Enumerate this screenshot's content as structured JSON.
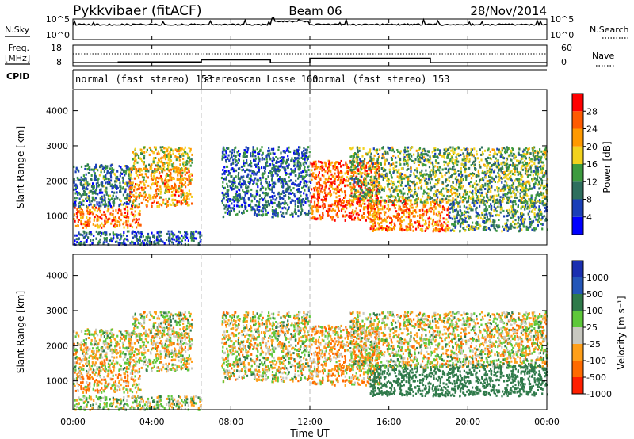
{
  "header": {
    "station": "Pykkvibaer (fitACF)",
    "beam": "Beam 06",
    "date": "28/Nov/2014"
  },
  "noise_panel": {
    "left_label": "N.Sky",
    "right_label": "N.Search",
    "left_ticks": [
      "10^5",
      "10^0"
    ],
    "right_ticks": [
      "10^5",
      "10^0"
    ]
  },
  "freq_panel": {
    "left_label_1": "Freq.",
    "left_label_2": "[MHz]",
    "left_ticks": [
      "18",
      "8"
    ],
    "right_label": "Nave",
    "right_ticks": [
      "60",
      "0"
    ]
  },
  "cpid": {
    "label": "CPID",
    "segments": [
      {
        "name": "normal (fast stereo) 153",
        "start_h": 0,
        "end_h": 6.5
      },
      {
        "name": "stereoscan Losse 160",
        "start_h": 6.5,
        "end_h": 12
      },
      {
        "name": "normal (fast stereo) 153",
        "start_h": 12,
        "end_h": 24
      }
    ]
  },
  "axes": {
    "xlabel": "Time UT",
    "xticks": [
      "00:00",
      "04:00",
      "08:00",
      "12:00",
      "16:00",
      "20:00",
      "00:00"
    ],
    "ylabel": "Slant Range [km]",
    "yticks": [
      "1000",
      "2000",
      "3000",
      "4000"
    ]
  },
  "colorbars": {
    "power": {
      "label": "Power [dB]",
      "ticks": [
        "28",
        "24",
        "20",
        "16",
        "12",
        "8",
        "4"
      ],
      "colors": [
        "#0000ff",
        "#1a3fb8",
        "#2e6f5e",
        "#3d9b3f",
        "#f2d21e",
        "#ff9900",
        "#ff5a00",
        "#ff0000"
      ]
    },
    "velocity": {
      "label": "Velocity [m s⁻¹]",
      "ticks": [
        "1000",
        "500",
        "100",
        "25",
        "-25",
        "-100",
        "-500",
        "-1000"
      ],
      "colors": [
        "#1a2fb0",
        "#2456b8",
        "#2f7a4a",
        "#5ec83a",
        "#c8c8c0",
        "#ff9f1a",
        "#ff6a00",
        "#ff1f00"
      ]
    }
  },
  "chart_data": {
    "type": "heatmap",
    "x_range_hours": [
      0,
      24
    ],
    "y_range_km": [
      180,
      4600
    ],
    "power_range_db": [
      0,
      30
    ],
    "velocity_range_ms": [
      -1000,
      1000
    ],
    "frequency_mhz": [
      {
        "start_h": 0,
        "end_h": 2.3,
        "value": 10
      },
      {
        "start_h": 2.3,
        "end_h": 6.5,
        "value": 10.5
      },
      {
        "start_h": 6.5,
        "end_h": 10,
        "value": 12
      },
      {
        "start_h": 10,
        "end_h": 12,
        "value": 10
      },
      {
        "start_h": 12,
        "end_h": 18.1,
        "value": 13
      },
      {
        "start_h": 18.1,
        "end_h": 24,
        "value": 10
      }
    ],
    "scatter_regions": [
      {
        "t0": 0.0,
        "t1": 3.4,
        "r0": 700,
        "r1": 1300,
        "power": 24,
        "velocity": -50
      },
      {
        "t0": 0.0,
        "t1": 3.0,
        "r0": 1300,
        "r1": 2500,
        "power": 10,
        "velocity": 0
      },
      {
        "t0": 2.8,
        "t1": 6.0,
        "r0": 1300,
        "r1": 2400,
        "power": 22,
        "velocity": -10
      },
      {
        "t0": 3.0,
        "t1": 6.0,
        "r0": 2300,
        "r1": 3000,
        "power": 18,
        "velocity": 0
      },
      {
        "t0": 0.0,
        "t1": 6.5,
        "r0": 200,
        "r1": 600,
        "power": 8,
        "velocity": 30
      },
      {
        "t0": 7.5,
        "t1": 12.0,
        "r0": 1000,
        "r1": 3000,
        "power": 9,
        "velocity": 0
      },
      {
        "t0": 12.0,
        "t1": 15.5,
        "r0": 900,
        "r1": 2600,
        "power": 26,
        "velocity": -60
      },
      {
        "t0": 15.0,
        "t1": 19.0,
        "r0": 600,
        "r1": 1500,
        "power": 24,
        "velocity": 250
      },
      {
        "t0": 14.0,
        "t1": 24.0,
        "r0": 1400,
        "r1": 3000,
        "power": 14,
        "velocity": 0
      },
      {
        "t0": 19.0,
        "t1": 24.0,
        "r0": 600,
        "r1": 1500,
        "power": 12,
        "velocity": 300
      }
    ]
  }
}
